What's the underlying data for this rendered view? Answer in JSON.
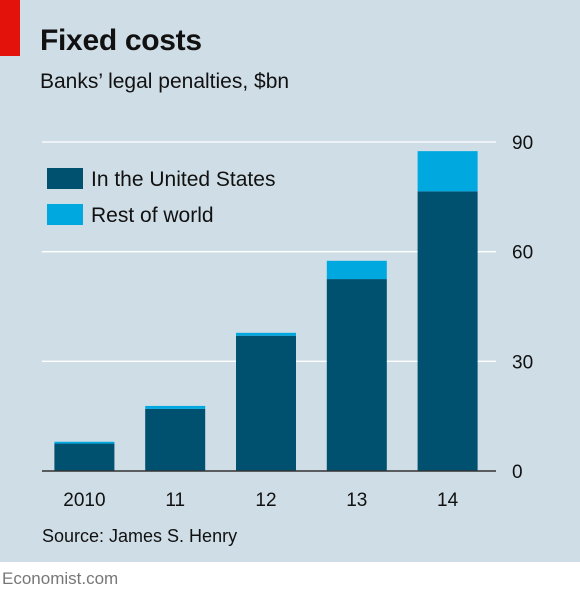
{
  "title": "Fixed costs",
  "subtitle": "Banks’ legal penalties, $bn",
  "source": "Source: James S. Henry",
  "footer": "Economist.com",
  "colors": {
    "background": "#cfdde6",
    "accent": "#e3120b",
    "us": "#005070",
    "rest": "#00a8e0",
    "grid": "#ffffff",
    "text": "#111111"
  },
  "chart_data": {
    "type": "bar",
    "stacked": true,
    "categories": [
      "2010",
      "11",
      "12",
      "13",
      "14"
    ],
    "series": [
      {
        "name": "In the United States",
        "values": [
          7.5,
          17,
          37,
          52.5,
          76.5
        ],
        "color": "#005070"
      },
      {
        "name": "Rest of world",
        "values": [
          0.5,
          0.8,
          0.8,
          5,
          11
        ],
        "color": "#00a8e0"
      }
    ],
    "ylim": [
      0,
      90
    ],
    "yticks": [
      "0",
      "30",
      "60",
      "90"
    ],
    "y_axis_side": "right",
    "grid": true,
    "legend": "top-left"
  }
}
